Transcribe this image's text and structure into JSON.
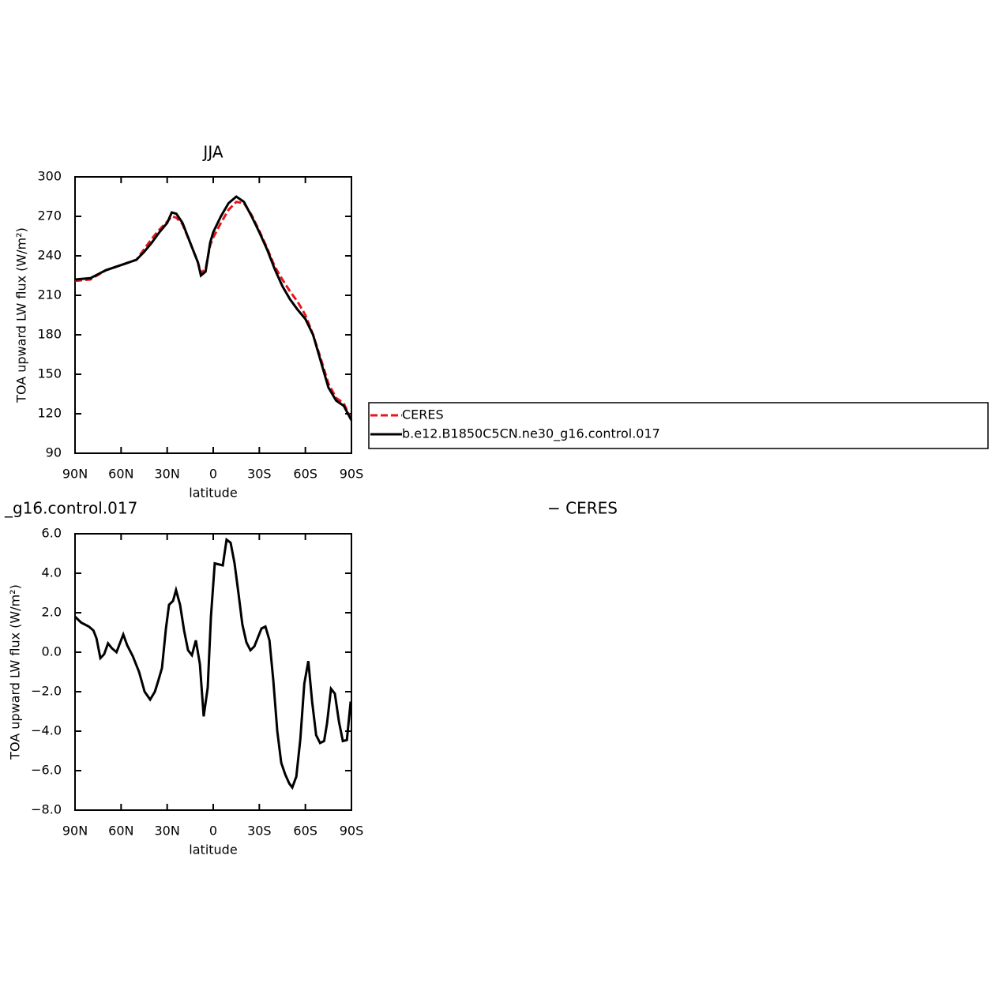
{
  "chart_data": [
    {
      "type": "line",
      "title": "JJA",
      "xlabel": "latitude",
      "ylabel": "TOA upward LW flux (W/m²)",
      "x": [
        90,
        80,
        70,
        60,
        50,
        45,
        40,
        35,
        30,
        27,
        24,
        20,
        15,
        10,
        8,
        5,
        2,
        0,
        -5,
        -10,
        -15,
        -20,
        -25,
        -30,
        -35,
        -40,
        -45,
        -50,
        -55,
        -60,
        -65,
        -70,
        -75,
        -80,
        -85,
        -90
      ],
      "series": [
        {
          "name": "CERES",
          "color": "#e8141c",
          "line_style": "dashed",
          "values": [
            221,
            222,
            229,
            233,
            237,
            245,
            253,
            260,
            266,
            270,
            269,
            264,
            250,
            235,
            227,
            230,
            248,
            254,
            265,
            275,
            281,
            280,
            271,
            259,
            246,
            232,
            222,
            213,
            205,
            195,
            180,
            162,
            143,
            132,
            128,
            115
          ]
        },
        {
          "name": "b.e12.B1850C5CN.ne30_g16.control.017",
          "color": "#000000",
          "line_style": "solid",
          "values": [
            222,
            223,
            229,
            233,
            237,
            243,
            250,
            258,
            265,
            273,
            272,
            265,
            250,
            235,
            225,
            228,
            250,
            258,
            270,
            280,
            285,
            281,
            270,
            258,
            245,
            230,
            217,
            207,
            199,
            192,
            180,
            160,
            140,
            130,
            126,
            115
          ]
        }
      ],
      "xlim": [
        90,
        -90
      ],
      "xticks": [
        {
          "value": 90,
          "label": "90N"
        },
        {
          "value": 60,
          "label": "60N"
        },
        {
          "value": 30,
          "label": "30N"
        },
        0,
        {
          "value": -30,
          "label": "30S"
        },
        {
          "value": -60,
          "label": "60S"
        },
        {
          "value": -90,
          "label": "90S"
        }
      ],
      "ylim": [
        90,
        300
      ],
      "yticks": [
        90,
        120,
        150,
        180,
        210,
        240,
        270,
        300
      ],
      "legend": "right"
    },
    {
      "type": "line",
      "title_left": "_g16.control.017",
      "title_right": "− CERES",
      "xlabel": "latitude",
      "ylabel": "TOA upward LW flux (W/m²)",
      "x": [
        90,
        86,
        81,
        78,
        76,
        73.5,
        71,
        68.5,
        66,
        63,
        58.6,
        56,
        52.4,
        48.3,
        44.7,
        41.1,
        38,
        36,
        33.4,
        30.8,
        28.8,
        26.2,
        24.2,
        21.6,
        19,
        16.4,
        13.9,
        11.3,
        8.7,
        6.2,
        3.6,
        1.5,
        -1,
        -6.2,
        -8.7,
        -11.3,
        -13.9,
        -16.4,
        -19,
        -21.6,
        -24.2,
        -26.8,
        -31.4,
        -34,
        -36.6,
        -39.1,
        -41.7,
        -44.3,
        -46.9,
        -49.5,
        -51.5,
        -54.1,
        -56.7,
        -59.3,
        -61.9,
        -64.4,
        -67,
        -69.6,
        -72.2,
        -74.1,
        -76.7,
        -79.2,
        -81.8,
        -84.4,
        -87,
        -89.5
      ],
      "values": [
        1.8,
        1.5,
        1.3,
        1.1,
        0.7,
        -0.3,
        -0.1,
        0.45,
        0.2,
        0.0,
        0.9,
        0.35,
        -0.2,
        -1.0,
        -2.0,
        -2.4,
        -2.0,
        -1.5,
        -0.8,
        1.2,
        2.4,
        2.6,
        3.15,
        2.4,
        1.1,
        0.1,
        -0.15,
        0.6,
        -0.6,
        -3.25,
        -1.8,
        1.8,
        4.5,
        4.4,
        5.7,
        5.55,
        4.5,
        3.0,
        1.4,
        0.5,
        0.1,
        0.3,
        1.2,
        1.3,
        0.6,
        -1.4,
        -4.0,
        -5.6,
        -6.2,
        -6.65,
        -6.85,
        -6.3,
        -4.4,
        -1.6,
        -0.45,
        -2.5,
        -4.2,
        -4.6,
        -4.5,
        -3.6,
        -1.85,
        -2.1,
        -3.5,
        -4.5,
        -4.45,
        -2.5
      ],
      "color": "#000000",
      "xlim": [
        90,
        -90
      ],
      "xticks": [
        {
          "value": 90,
          "label": "90N"
        },
        {
          "value": 60,
          "label": "60N"
        },
        {
          "value": 30,
          "label": "30N"
        },
        0,
        {
          "value": -30,
          "label": "30S"
        },
        {
          "value": -60,
          "label": "60S"
        },
        {
          "value": -90,
          "label": "90S"
        }
      ],
      "ylim": [
        -8,
        6
      ],
      "yticks": [
        {
          "value": -8,
          "label": "−8.0"
        },
        {
          "value": -6,
          "label": "−6.0"
        },
        {
          "value": -4,
          "label": "−4.0"
        },
        {
          "value": -2,
          "label": "−2.0"
        },
        {
          "value": 0,
          "label": "0.0"
        },
        {
          "value": 2,
          "label": "2.0"
        },
        {
          "value": 4,
          "label": "4.0"
        },
        {
          "value": 6,
          "label": "6.0"
        }
      ]
    }
  ]
}
